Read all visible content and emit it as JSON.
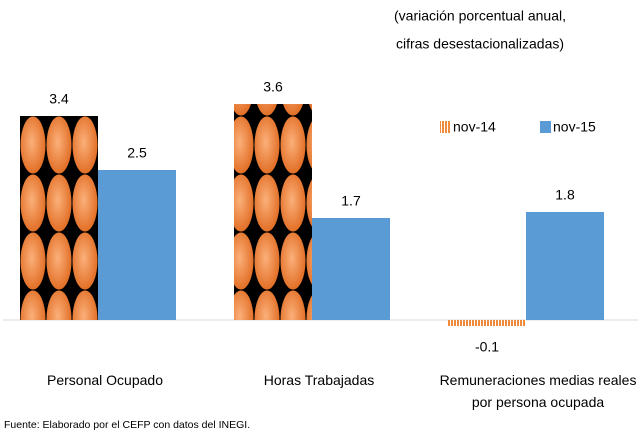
{
  "chart_data": {
    "type": "bar",
    "subtitle": [
      "(variación porcentual anual,",
      "cifras desestacionalizadas)"
    ],
    "categories": [
      "Personal Ocupado",
      "Horas Trabajadas",
      "Remuneraciones medias reales por persona ocupada"
    ],
    "series": [
      {
        "name": "nov-14",
        "color": "#f08a3c",
        "values": [
          3.4,
          3.6,
          -0.1
        ]
      },
      {
        "name": "nov-15",
        "color": "#5b9bd5",
        "values": [
          2.5,
          1.7,
          1.8
        ]
      }
    ],
    "legend": "upper right",
    "source": "Fuente: Elaborado por el CEFP con datos del INEGI."
  }
}
